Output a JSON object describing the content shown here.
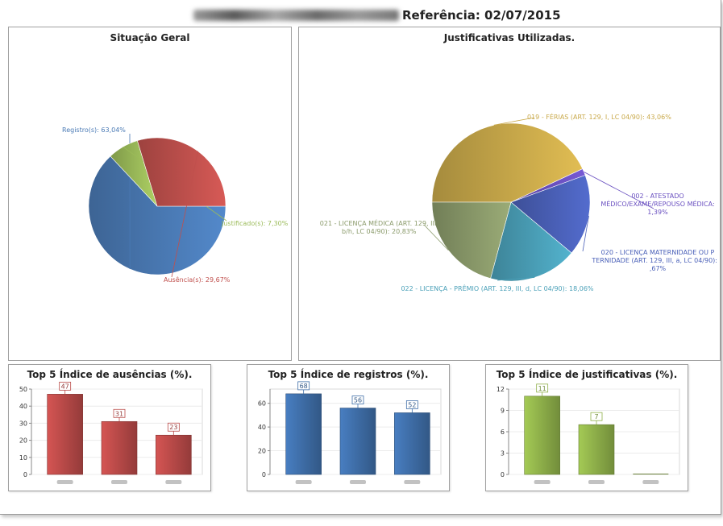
{
  "header": {
    "reference": "Referência: 02/07/2015"
  },
  "colors": {
    "blue": "#4a7ab5",
    "red": "#c0504d",
    "green": "#9bbb59",
    "gold": "#c9a94a",
    "sage": "#8a9a6a",
    "teal": "#4aa0b8",
    "indigo": "#4a60b8",
    "purple": "#6a50c0"
  },
  "chart_data": [
    {
      "type": "pie",
      "title": "Situação Geral",
      "slices": [
        {
          "label": "Registro(s): 63,04%",
          "value": 63.04,
          "color": "#4a7ab5"
        },
        {
          "label": "Justificado(s): 7,30%",
          "value": 7.3,
          "color": "#9bbb59"
        },
        {
          "label": "Ausência(s): 29,67%",
          "value": 29.67,
          "color": "#c0504d"
        }
      ]
    },
    {
      "type": "pie",
      "title": "Justificativas Utilizadas.",
      "slices": [
        {
          "label": "019 - FÉRIAS (ART. 129, I, LC 04/90): 43,06%",
          "value": 43.06,
          "color": "#c9a94a"
        },
        {
          "label": "002 - ATESTADO MÉDICO/EXAME/REPOUSO MÉDICA: 1,39%",
          "value": 1.39,
          "color": "#6a50c0"
        },
        {
          "label": "020 - LICENÇA MATERNIDADE OU PATERNIDADE (ART. 129, III, a, LC 04/90): 16,67%",
          "value": 16.67,
          "color": "#4a60b8"
        },
        {
          "label": "022 - LICENÇA - PRÊMIO (ART. 129, III, d, LC 04/90): 18,06%",
          "value": 18.06,
          "color": "#4aa0b8"
        },
        {
          "label": "021 - LICENÇA MÉDICA (ART. 129, III, b/h, LC 04/90): 20,83%",
          "value": 20.83,
          "color": "#8a9a6a"
        }
      ]
    },
    {
      "type": "bar",
      "title": "Top 5 Índice de ausências (%).",
      "values": [
        47,
        31,
        23
      ],
      "ylim": [
        0,
        50
      ],
      "yticks": [
        0,
        10,
        20,
        30,
        40,
        50
      ],
      "color": "#b94a48"
    },
    {
      "type": "bar",
      "title": "Top 5 Índice de registros (%).",
      "values": [
        68,
        56,
        52
      ],
      "ylim": [
        0,
        72
      ],
      "yticks": [
        0,
        20,
        40,
        60
      ],
      "color": "#3f6ea8"
    },
    {
      "type": "bar",
      "title": "Top 5 Índice de justificativas (%).",
      "values": [
        11,
        7,
        0
      ],
      "ylim": [
        0,
        12
      ],
      "yticks": [
        0,
        3,
        6,
        9,
        12
      ],
      "color": "#8fb04a"
    }
  ]
}
